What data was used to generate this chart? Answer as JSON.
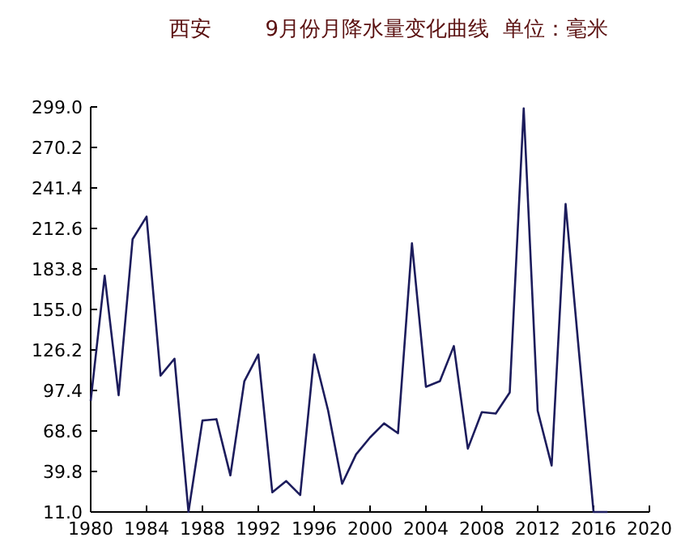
{
  "chart_data": {
    "type": "line",
    "title": "西安        9月份月降水量变化曲线  单位：毫米",
    "x": [
      1980,
      1981,
      1982,
      1983,
      1984,
      1985,
      1986,
      1987,
      1988,
      1989,
      1990,
      1991,
      1992,
      1993,
      1994,
      1995,
      1996,
      1997,
      1998,
      1999,
      2000,
      2001,
      2002,
      2003,
      2004,
      2005,
      2006,
      2007,
      2008,
      2009,
      2010,
      2011,
      2012,
      2013,
      2014,
      2015,
      2016,
      2017
    ],
    "series": [
      {
        "color": "#1c1c5c",
        "values": [
          90,
          179,
          94,
          205,
          221,
          108,
          120,
          11,
          76,
          77,
          37,
          104,
          123,
          25,
          33,
          23,
          123,
          83,
          31,
          52,
          64,
          74,
          67,
          202,
          100,
          104,
          129,
          56,
          82,
          81,
          96,
          298,
          83,
          44,
          230,
          120,
          11,
          11
        ]
      }
    ],
    "xlim": [
      1980,
      2020
    ],
    "xticks": [
      1980,
      1984,
      1988,
      1992,
      1996,
      2000,
      2004,
      2008,
      2012,
      2016,
      2020
    ],
    "ylim": [
      11,
      299
    ],
    "yticks": [
      {
        "value": 11,
        "label": "11.0"
      },
      {
        "value": 39.8,
        "label": "39.8"
      },
      {
        "value": 68.6,
        "label": "68.6"
      },
      {
        "value": 97.4,
        "label": "97.4"
      },
      {
        "value": 126.2,
        "label": "126.2"
      },
      {
        "value": 155,
        "label": "155.0"
      },
      {
        "value": 183.8,
        "label": "183.8"
      },
      {
        "value": 212.6,
        "label": "212.6"
      },
      {
        "value": 241.4,
        "label": "241.4"
      },
      {
        "value": 270.2,
        "label": "270.2"
      },
      {
        "value": 299,
        "label": "299.0"
      }
    ],
    "grid": false,
    "marker": "none",
    "line_style": "solid"
  }
}
